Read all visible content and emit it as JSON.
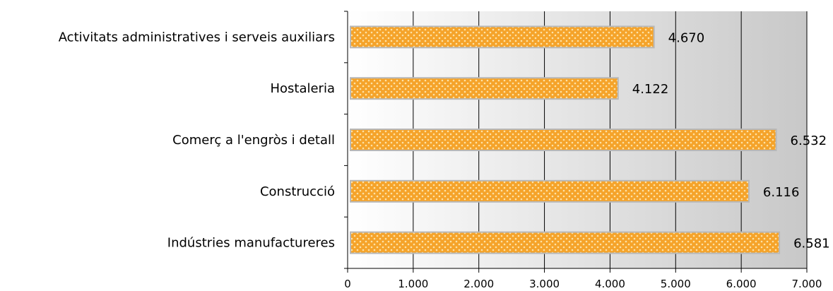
{
  "chart_data": {
    "type": "bar",
    "orientation": "horizontal",
    "categories": [
      "Activitats administratives i serveis auxiliars",
      "Hostaleria",
      "Comerç a l'engròs i detall",
      "Construcció",
      "Indústries manufactureres"
    ],
    "values": [
      4670,
      4122,
      6532,
      6116,
      6581
    ],
    "value_labels": [
      "4.670",
      "4.122",
      "6.532",
      "6.116",
      "6.581"
    ],
    "xlim": [
      0,
      7000
    ],
    "x_ticks": [
      0,
      1000,
      2000,
      3000,
      4000,
      5000,
      6000,
      7000
    ],
    "x_tick_labels": [
      "0",
      "1.000",
      "2.000",
      "3.000",
      "4.000",
      "5.000",
      "6.000",
      "7.000"
    ],
    "grid": "vertical",
    "legend": "none",
    "colors": {
      "bar_fill": "#f5a32a",
      "bar_pattern": "#fde2a6",
      "bar_border": "#b8b8b8",
      "plot_bg_light": "#ffffff",
      "plot_bg_dark": "#c8c8c8",
      "gridline": "#000000"
    }
  }
}
